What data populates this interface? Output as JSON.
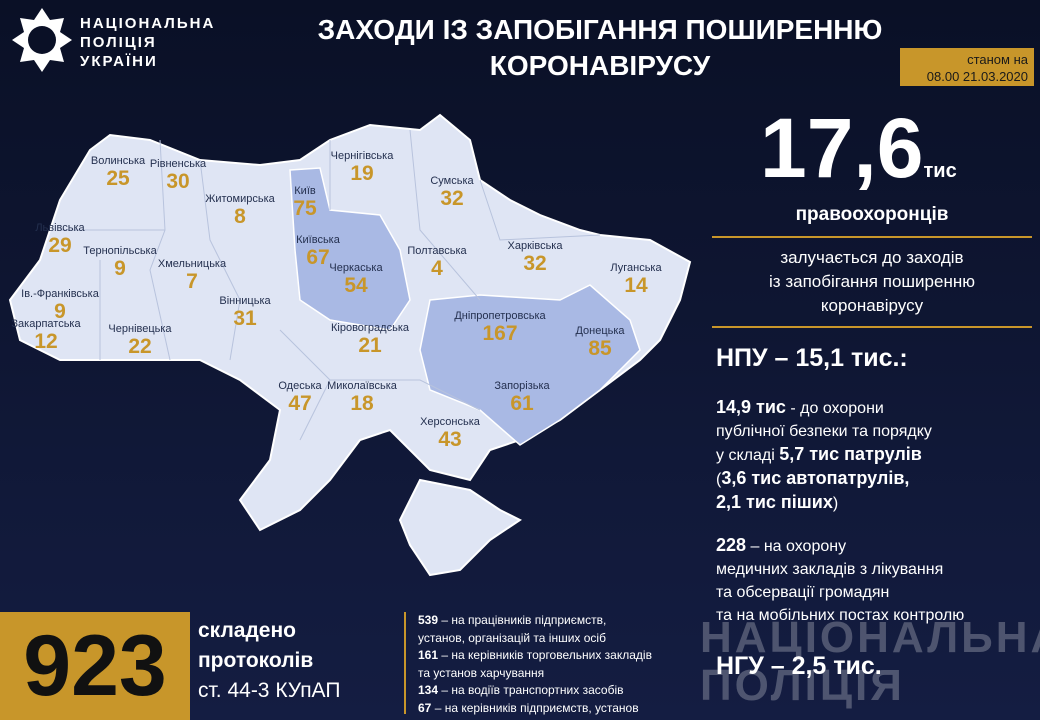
{
  "header": {
    "org": [
      "НАЦІОНАЛЬНА",
      "ПОЛІЦІЯ",
      "УКРАЇНИ"
    ],
    "title": [
      "ЗАХОДИ ІЗ ЗАПОБІГАННЯ ПОШИРЕННЮ",
      "КОРОНАВІРУСУ"
    ],
    "date": [
      "станом на",
      "08.00 21.03.2020"
    ]
  },
  "regions": [
    {
      "name": "Волинська",
      "value": 25
    },
    {
      "name": "Рівненська",
      "value": 30
    },
    {
      "name": "Житомирська",
      "value": 8
    },
    {
      "name": "Київ",
      "value": 75,
      "highlighted": true
    },
    {
      "name": "Чернігівська",
      "value": 19
    },
    {
      "name": "Сумська",
      "value": 32
    },
    {
      "name": "Львівська",
      "value": 29
    },
    {
      "name": "Тернопільська",
      "value": 9
    },
    {
      "name": "Хмельницька",
      "value": 7
    },
    {
      "name": "Київська",
      "value": 67,
      "highlighted": true
    },
    {
      "name": "Полтавська",
      "value": 4
    },
    {
      "name": "Харківська",
      "value": 32
    },
    {
      "name": "Луганська",
      "value": 14
    },
    {
      "name": "Ів.-Франківська",
      "value": 9
    },
    {
      "name": "Закарпатська",
      "value": 12
    },
    {
      "name": "Чернівецька",
      "value": 22
    },
    {
      "name": "Вінницька",
      "value": 31
    },
    {
      "name": "Черкаська",
      "value": 54,
      "highlighted": true
    },
    {
      "name": "Кіровоградська",
      "value": 21
    },
    {
      "name": "Дніпропетровська",
      "value": 167,
      "highlighted": true
    },
    {
      "name": "Донецька",
      "value": 85,
      "highlighted": true
    },
    {
      "name": "Одеська",
      "value": 47
    },
    {
      "name": "Миколаївська",
      "value": 18
    },
    {
      "name": "Запорізька",
      "value": 61,
      "highlighted": true
    },
    {
      "name": "Херсонська",
      "value": 43
    }
  ],
  "summary": {
    "total": "17,6",
    "unit": "тис",
    "subject": "правоохоронців",
    "description": [
      "залучається до заходів",
      "із запобігання поширенню",
      "коронавірусу"
    ]
  },
  "npu": {
    "heading": "НПУ – 15,1 тис.:",
    "details": [
      {
        "bold": "14,9 тис",
        "text": " - до охорони"
      },
      {
        "text": "публічної безпеки  та порядку"
      },
      {
        "pre": "у складі ",
        "bold": "5,7 тис патрулів"
      },
      {
        "pre": "(",
        "bold": "3,6 тис автопатрулів,"
      },
      {
        "bold": " 2,1 тис піших",
        "text": ")"
      }
    ],
    "medical": [
      {
        "bold": "228",
        "text": " – на охорону"
      },
      {
        "text": "медичних закладів з лікування"
      },
      {
        "text": "та обсервації громадян"
      },
      {
        "text": "та на мобільних постах контролю"
      }
    ]
  },
  "ngu": {
    "heading": "НГУ – 2,5 тис."
  },
  "protocols": {
    "count": "923",
    "caption": [
      "складено",
      "протоколів",
      "ст. 44-3 КУпАП"
    ],
    "items": [
      {
        "num": "539",
        "text": " – на працівників підприємств,"
      },
      {
        "text": "установ, організацій та інших осіб"
      },
      {
        "num": "161",
        "text": " – на керівників торговельних закладів"
      },
      {
        "text": "та установ харчування"
      },
      {
        "num": "134",
        "text": " – на водіїв транспортних засобів"
      },
      {
        "num": "67",
        "text": " – на керівників підприємств, установ"
      }
    ]
  },
  "watermark": [
    "НАЦІОНАЛЬНА",
    "ПОЛІЦІЯ"
  ]
}
